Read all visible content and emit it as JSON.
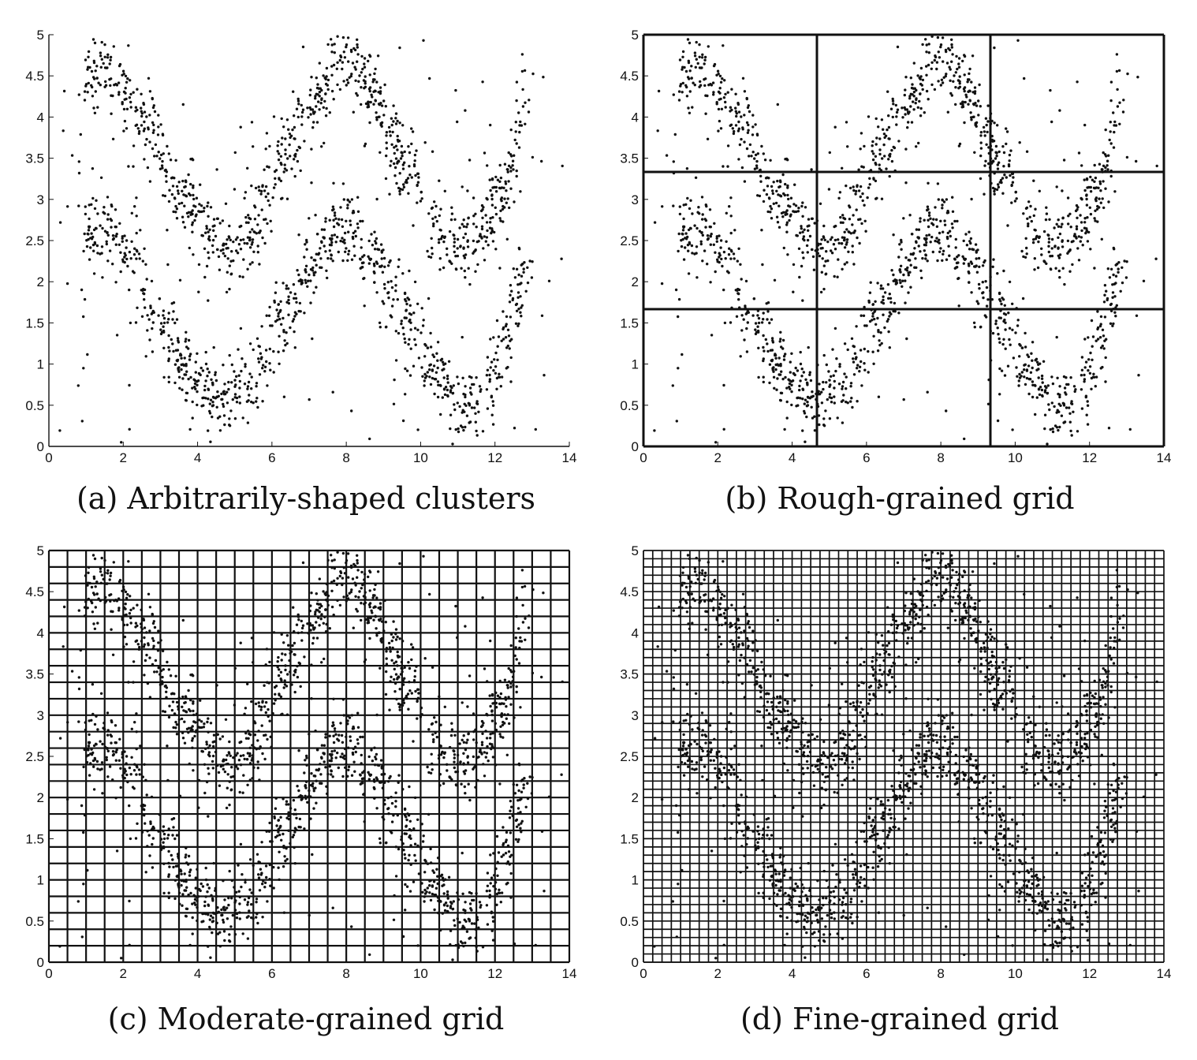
{
  "chart_data": [
    {
      "type": "scatter",
      "title": "",
      "caption": "(a) Arbitrarily-shaped clusters",
      "xlim": [
        0,
        14
      ],
      "ylim": [
        0,
        5
      ],
      "xticks": [
        "0",
        "2",
        "4",
        "6",
        "8",
        "10",
        "12",
        "14"
      ],
      "yticks": [
        "0",
        "0.5",
        "1",
        "1.5",
        "2",
        "2.5",
        "3",
        "3.5",
        "4",
        "4.5",
        "5"
      ],
      "grid": {
        "x_cells": 0,
        "y_cells": 0,
        "shown": false
      },
      "color": "#111111",
      "points": "same synthetic dataset in all four panels: two sinusoidal bands of points (upper band from (1,4.5) down to (5,2.3) up to (8,4.8) down to (11,2.5) up to (13,4); lower band from (1,2.6) down to (4.7,0.5) up to (8,2.7) down to (11,0.4) up to (12.8,2.3)) plus sparse uniform noise over [0,14]x[0,5]"
    },
    {
      "type": "scatter",
      "title": "",
      "caption": "(b) Rough-grained grid",
      "xlim": [
        0,
        14
      ],
      "ylim": [
        0,
        5
      ],
      "xticks": [
        "0",
        "2",
        "4",
        "6",
        "8",
        "10",
        "12",
        "14"
      ],
      "yticks": [
        "0",
        "0.5",
        "1",
        "1.5",
        "2",
        "2.5",
        "3",
        "3.5",
        "4",
        "4.5",
        "5"
      ],
      "grid": {
        "x_cells": 3,
        "y_cells": 3,
        "shown": true
      },
      "color": "#111111"
    },
    {
      "type": "scatter",
      "title": "",
      "caption": "(c) Moderate-grained grid",
      "xlim": [
        0,
        14
      ],
      "ylim": [
        0,
        5
      ],
      "xticks": [
        "0",
        "2",
        "4",
        "6",
        "8",
        "10",
        "12",
        "14"
      ],
      "yticks": [
        "0",
        "0.5",
        "1",
        "1.5",
        "2",
        "2.5",
        "3",
        "3.5",
        "4",
        "4.5",
        "5"
      ],
      "grid": {
        "x_cells": 28,
        "y_cells": 25,
        "shown": true
      },
      "color": "#111111"
    },
    {
      "type": "scatter",
      "title": "",
      "caption": "(d) Fine-grained grid",
      "xlim": [
        0,
        14
      ],
      "ylim": [
        0,
        5
      ],
      "xticks": [
        "0",
        "2",
        "4",
        "6",
        "8",
        "10",
        "12",
        "14"
      ],
      "yticks": [
        "0",
        "0.5",
        "1",
        "1.5",
        "2",
        "2.5",
        "3",
        "3.5",
        "4",
        "4.5",
        "5"
      ],
      "grid": {
        "x_cells": 56,
        "y_cells": 50,
        "shown": true
      },
      "color": "#111111"
    }
  ]
}
